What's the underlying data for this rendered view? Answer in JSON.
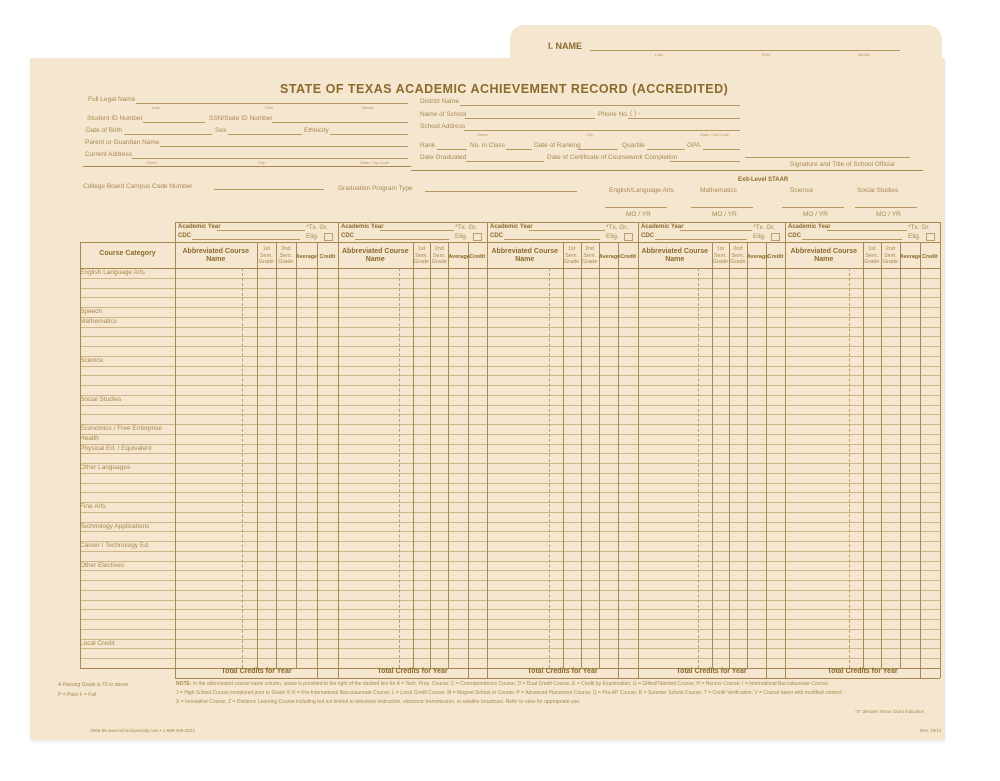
{
  "tab": {
    "label": "I. NAME",
    "sub": [
      "Last",
      "First",
      "Middle"
    ]
  },
  "title": "STATE OF TEXAS ACADEMIC ACHIEVEMENT RECORD (ACCREDITED)",
  "student_fields": {
    "full_legal_name": "Full Legal Name",
    "name_sub": [
      "Last",
      "First",
      "Middle"
    ],
    "student_id": "Student ID Number",
    "ssn": "SSN/State ID Number",
    "dob": "Date of Birth",
    "sex": "Sex",
    "ethnicity": "Ethnicity",
    "guardian": "Parent or Guardian Name",
    "address": "Current Address",
    "address_sub": [
      "Street",
      "City",
      "State / Zip Code"
    ]
  },
  "school_fields": {
    "district": "District Name",
    "school": "Name of School",
    "phone": "Phone No.",
    "phone_mask": "(      )          -",
    "school_address": "School Address",
    "address_sub": [
      "Street",
      "City",
      "State / Zip Code"
    ],
    "rank": "Rank",
    "no_in_class": "No. in Class",
    "date_ranking": "Date of Ranking",
    "quartile": "Quartile",
    "gpa": "GPA",
    "date_graduated": "Date Graduated",
    "date_certificate": "Date of Certificate of Coursework Completion",
    "signature": "Signature and Title of School Official"
  },
  "exit": {
    "campus_code": "College Board Campus Code Number",
    "grad_program": "Graduation Program Type",
    "heading": "Exit-Level STAAR",
    "subjects": [
      "English/Language Arts",
      "Mathematics",
      "Science",
      "Social Studies"
    ],
    "date_label": "MO / YR"
  },
  "grid": {
    "course_category": "Course Category",
    "academic_year": "Academic Year",
    "cdc": "CDC",
    "tx_gr": "*Tx. Gr.",
    "elig": "Elig.",
    "abbrev": "Abbreviated Course Name",
    "sem1": "1st Sem. Grade",
    "sem2": "2nd Sem. Grade",
    "average": "Average",
    "credit": "Credit",
    "total": "Total Credits for Year",
    "categories": [
      "English Language Arts",
      "Speech",
      "Mathematics",
      "Science",
      "Social Studies",
      "Economics / Free Enterprise",
      "Health",
      "Physical Ed. / Equivalent",
      "Other Languages",
      "Fine Arts",
      "Technology Applications",
      "Career / Technology Ed.",
      "Other Electives",
      "Local Credit"
    ]
  },
  "footer": {
    "passing": "A Passing Grade is 70 or above.",
    "pass_fail": "P =  Pass       F = Fail",
    "note_label": "NOTE:",
    "note1": "In the abbreviated course name column, space is provided to the right of the dashed line for A = Tech. Prep. Course; C = Correspondence Course; D = Dual Credit Course; E = Credit by Examination; G = Gifted/Talented Course; H = Honors Course; I = International Baccalaureate Course;",
    "note2": "J = High School Course completed prior to Grade 9; K = Pre-International Baccalaureate Course; L = Local Credit Course; M = Magnet School or Course; P = Advanced Placement Course; Q = Pre-AP Course; R = Summer School Course; T = Credit Verification; V = Course taken with modified content;",
    "note3": "X = Innovative Course; Z = Distance Learning Course including but not limited to television instruction, electronic transmission, or satellite broadcast. Refer to rules for appropriate use.",
    "texas_grant": "\"X\" denotes Texas Grant indication",
    "publisher": "Z565-56  www.schoolspecialty.com • 1-888-388-3224",
    "rev": "Rev. 10/13"
  },
  "colors": {
    "paper": "#f4e6cf",
    "ink": "#9a7a3c"
  }
}
